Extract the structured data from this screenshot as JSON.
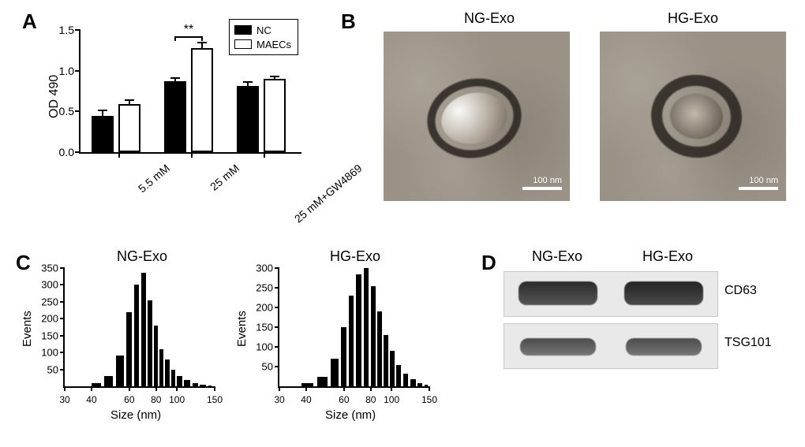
{
  "styling": {
    "background_color": "#ffffff",
    "axis_color": "#000000",
    "font_family": "Arial",
    "panel_label_fontsize": 26,
    "panel_label_fontweight": 700
  },
  "panelA": {
    "label": "A",
    "type": "bar",
    "ylabel": "OD 490",
    "ylim": [
      0,
      1.5
    ],
    "ytick_step": 0.5,
    "yticks": [
      "0.0",
      "0.5",
      "1.0",
      "1.5"
    ],
    "label_fontsize": 16,
    "tick_fontsize": 14,
    "categories": [
      "5.5 mM",
      "25 mM",
      "25 mM+GW4869"
    ],
    "series": [
      {
        "name": "NC",
        "color": "#000000",
        "fill": "solid",
        "values": [
          0.45,
          0.87,
          0.81
        ],
        "errors": [
          0.06,
          0.04,
          0.05
        ]
      },
      {
        "name": "MAECs",
        "color": "#000000",
        "fill": "outlined",
        "values": [
          0.59,
          1.28,
          0.9
        ],
        "errors": [
          0.05,
          0.07,
          0.03
        ]
      }
    ],
    "bar_width": 0.35,
    "significance": {
      "group_index": 1,
      "text": "**",
      "y": 1.42
    },
    "legend": {
      "position": "top-right",
      "border_color": "#000000"
    }
  },
  "panelB": {
    "label": "B",
    "type": "image-pair",
    "images": [
      {
        "title": "NG-Exo",
        "background_color": "#9a9285",
        "scalebar_nm": 100,
        "scalebar_label": "100 nm"
      },
      {
        "title": "HG-Exo",
        "background_color": "#9a9285",
        "scalebar_nm": 100,
        "scalebar_label": "100 nm"
      }
    ]
  },
  "panelC": {
    "label": "C",
    "type": "histogram-pair",
    "xlabel": "Size (nm)",
    "ylabel": "Events",
    "tick_fontsize": 13,
    "label_fontsize": 15,
    "bar_color": "#000000",
    "charts": [
      {
        "title": "NG-Exo",
        "xlim": [
          30,
          150
        ],
        "xticks": [
          30,
          40,
          60,
          80,
          100,
          150
        ],
        "ylim": [
          0,
          350
        ],
        "yticks": [
          50,
          100,
          150,
          200,
          250,
          300,
          350
        ],
        "bins": [
          {
            "x": 40,
            "count": 10
          },
          {
            "x": 46,
            "count": 30
          },
          {
            "x": 52,
            "count": 90
          },
          {
            "x": 58,
            "count": 220
          },
          {
            "x": 63,
            "count": 300
          },
          {
            "x": 68,
            "count": 335
          },
          {
            "x": 73,
            "count": 255
          },
          {
            "x": 78,
            "count": 180
          },
          {
            "x": 83,
            "count": 110
          },
          {
            "x": 88,
            "count": 80
          },
          {
            "x": 94,
            "count": 48
          },
          {
            "x": 100,
            "count": 30
          },
          {
            "x": 108,
            "count": 18
          },
          {
            "x": 118,
            "count": 9
          },
          {
            "x": 128,
            "count": 5
          },
          {
            "x": 140,
            "count": 3
          }
        ]
      },
      {
        "title": "HG-Exo",
        "xlim": [
          30,
          150
        ],
        "xticks": [
          30,
          40,
          60,
          80,
          100,
          150
        ],
        "ylim": [
          0,
          300
        ],
        "yticks": [
          50,
          100,
          150,
          200,
          250,
          300
        ],
        "bins": [
          {
            "x": 38,
            "count": 8
          },
          {
            "x": 45,
            "count": 25
          },
          {
            "x": 52,
            "count": 70
          },
          {
            "x": 58,
            "count": 150
          },
          {
            "x": 63,
            "count": 230
          },
          {
            "x": 68,
            "count": 285
          },
          {
            "x": 74,
            "count": 300
          },
          {
            "x": 80,
            "count": 255
          },
          {
            "x": 86,
            "count": 190
          },
          {
            "x": 92,
            "count": 130
          },
          {
            "x": 98,
            "count": 90
          },
          {
            "x": 105,
            "count": 55
          },
          {
            "x": 113,
            "count": 32
          },
          {
            "x": 122,
            "count": 18
          },
          {
            "x": 132,
            "count": 9
          },
          {
            "x": 142,
            "count": 4
          }
        ]
      }
    ]
  },
  "panelD": {
    "label": "D",
    "type": "western-blot",
    "lanes": [
      "NG-Exo",
      "HG-Exo"
    ],
    "rows": [
      {
        "label": "CD63",
        "band_color": "#3a3a3a",
        "background": "#e9e9e9",
        "intensities": [
          0.85,
          0.9
        ]
      },
      {
        "label": "TSG101",
        "band_color": "#5a5a5a",
        "background": "#e3e3e3",
        "intensities": [
          0.8,
          0.8
        ]
      }
    ]
  }
}
